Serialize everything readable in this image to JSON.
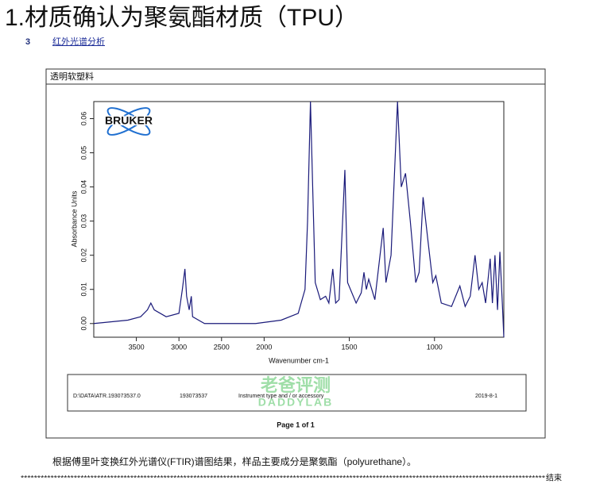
{
  "header": {
    "title": "1.材质确认为聚氨酯材质（TPU）",
    "section_number": "3",
    "section_title": "红外光谱分析"
  },
  "report": {
    "sample_label": "透明软塑料",
    "logo": "BRUKER",
    "chart_data": {
      "type": "line",
      "x_label": "Wavenumber cm-1",
      "y_label": "Absorbance Units",
      "color": "#1a1a7a",
      "xlim": [
        4000,
        593
      ],
      "x_scale_break": 2000,
      "x_scale_ratio": 2,
      "ylim": [
        -0.004,
        0.065
      ],
      "xticks": [
        3500,
        3000,
        2500,
        2000,
        1500,
        1000
      ],
      "yticks": [
        {
          "value": 0,
          "label": "0.00"
        },
        {
          "value": 0.01,
          "label": "0.01"
        },
        {
          "value": 0.02,
          "label": "0.02"
        },
        {
          "value": 0.03,
          "label": "0.03"
        },
        {
          "value": 0.04,
          "label": "0.04"
        },
        {
          "value": 0.05,
          "label": "0.05"
        },
        {
          "value": 0.06,
          "label": "0.06"
        }
      ],
      "x": [
        4000,
        3800,
        3600,
        3450,
        3370,
        3330,
        3290,
        3150,
        3000,
        2960,
        2930,
        2910,
        2880,
        2855,
        2840,
        2700,
        2400,
        2100,
        1900,
        1800,
        1760,
        1745,
        1728,
        1715,
        1700,
        1670,
        1639,
        1620,
        1597,
        1580,
        1560,
        1526,
        1510,
        1460,
        1430,
        1414,
        1400,
        1386,
        1350,
        1301,
        1285,
        1255,
        1217,
        1195,
        1170,
        1142,
        1110,
        1090,
        1067,
        1040,
        1010,
        992,
        960,
        900,
        851,
        820,
        790,
        762,
        740,
        720,
        700,
        673,
        660,
        645,
        630,
        616,
        600,
        593
      ],
      "values": [
        0.0,
        0.0005,
        0.001,
        0.002,
        0.004,
        0.006,
        0.004,
        0.002,
        0.003,
        0.01,
        0.016,
        0.008,
        0.004,
        0.008,
        0.002,
        0.0,
        0.0,
        0.0,
        0.001,
        0.003,
        0.01,
        0.03,
        0.065,
        0.04,
        0.012,
        0.007,
        0.008,
        0.006,
        0.016,
        0.006,
        0.007,
        0.045,
        0.012,
        0.006,
        0.009,
        0.015,
        0.01,
        0.013,
        0.007,
        0.028,
        0.012,
        0.02,
        0.065,
        0.04,
        0.044,
        0.03,
        0.012,
        0.015,
        0.037,
        0.025,
        0.012,
        0.014,
        0.006,
        0.005,
        0.011,
        0.005,
        0.008,
        0.02,
        0.01,
        0.012,
        0.006,
        0.019,
        0.006,
        0.02,
        0.004,
        0.021,
        0.004,
        -0.004
      ]
    },
    "footer": {
      "path": "D:\\DATA\\ATR.193073537.0",
      "sample_id": "193073537",
      "instrument": "Instrument type and / or accessory",
      "date": "2019-8-1"
    },
    "page": "Page 1 of 1"
  },
  "watermark": {
    "cn": "老爸评测",
    "en": "DADDYLAB"
  },
  "conclusion": "根据傅里叶变换红外光谱仪(FTIR)谱图结果，样品主要成分是聚氨酯（polyurethane）。",
  "separator": "**************************************************************************************************************************************************************",
  "end": "结束"
}
